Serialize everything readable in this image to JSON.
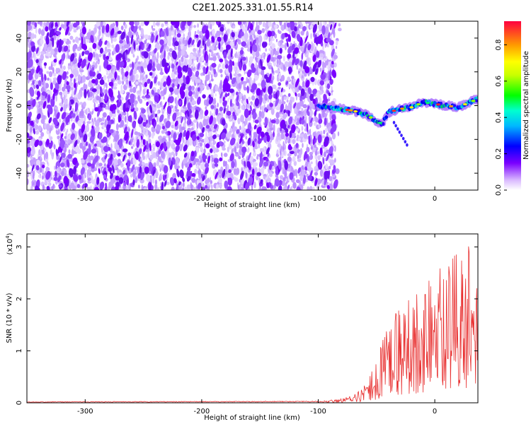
{
  "title": "C2E1.2025.331.01.55.R14",
  "chart_data": [
    {
      "type": "heatmap",
      "xlabel": "Height of straight line (km)",
      "ylabel": "Frequency (Hz)",
      "xlim": [
        -350,
        37
      ],
      "ylim": [
        -50,
        50
      ],
      "xticks": [
        -300,
        -200,
        -100,
        0
      ],
      "yticks": [
        -40,
        -20,
        0,
        20,
        40
      ],
      "noise_region": {
        "x_range": [
          -350,
          -85
        ],
        "y_range": [
          -50,
          50
        ]
      },
      "signal_trace": {
        "description": "high-amplitude track near 0 Hz",
        "x": [
          -100,
          -90,
          -80,
          -70,
          -60,
          -50,
          -45,
          -40,
          -30,
          -20,
          -10,
          0,
          10,
          20,
          30,
          37
        ],
        "y": [
          0,
          -1,
          -2,
          -3,
          -5,
          -9,
          -11,
          -4,
          -2,
          -1,
          2,
          1,
          0,
          -1,
          2,
          4
        ]
      },
      "colorbar": {
        "label": "Normalized spectral amplitude",
        "range": [
          0,
          0.93
        ],
        "ticks": [
          "0.0",
          "0.2",
          "0.4",
          "0.6",
          "0.8"
        ]
      }
    },
    {
      "type": "line",
      "xlabel": "Height of straight line (km)",
      "ylabel": "SNR (10 * v/v)",
      "y_scale_label": "(x10",
      "y_scale_exp": "4",
      "y_scale_close": ")",
      "xlim": [
        -350,
        37
      ],
      "ylim": [
        0,
        3.25
      ],
      "xticks": [
        -300,
        -200,
        -100,
        0
      ],
      "yticks": [
        0,
        1,
        2,
        3
      ],
      "series": [
        {
          "name": "SNR",
          "color": "#e83030",
          "envelope": {
            "x": [
              -350,
              -100,
              -80,
              -70,
              -60,
              -50,
              -40,
              -30,
              -20,
              -10,
              0,
              10,
              20,
              30,
              37
            ],
            "y": [
              0.02,
              0.03,
              0.08,
              0.15,
              0.35,
              0.8,
              1.6,
              1.9,
              2.2,
              2.3,
              2.5,
              2.7,
              2.9,
              3.2,
              2.6
            ]
          }
        }
      ]
    }
  ]
}
